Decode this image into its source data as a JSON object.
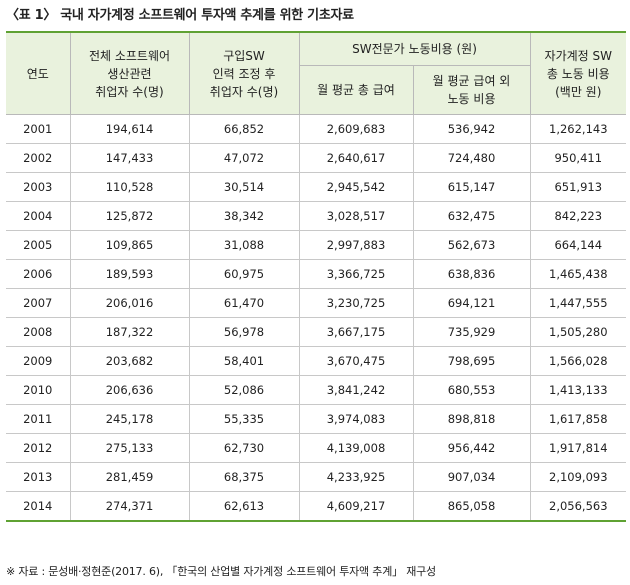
{
  "title": "〈표 1〉 국내 자가계정 소프트웨어 투자액 추계를 위한 기초자료",
  "table": {
    "headers": {
      "year": "연도",
      "employees": [
        "전체 소프트웨어",
        "생산관련",
        "취업자 수(명)"
      ],
      "purchased": [
        "구입SW",
        "인력 조정 후",
        "취업자 수(명)"
      ],
      "labor_cost": "SW전문가 노동비용 (원)",
      "monthly_wage": "월 평균 총 급여",
      "other_cost": [
        "월 평균 급여 외",
        "노동 비용"
      ],
      "total": [
        "자가계정 SW",
        "총 노동 비용",
        "(백만 원)"
      ]
    },
    "rows": [
      [
        "2001",
        "194,614",
        "66,852",
        "2,609,683",
        "536,942",
        "1,262,143"
      ],
      [
        "2002",
        "147,433",
        "47,072",
        "2,640,617",
        "724,480",
        "950,411"
      ],
      [
        "2003",
        "110,528",
        "30,514",
        "2,945,542",
        "615,147",
        "651,913"
      ],
      [
        "2004",
        "125,872",
        "38,342",
        "3,028,517",
        "632,475",
        "842,223"
      ],
      [
        "2005",
        "109,865",
        "31,088",
        "2,997,883",
        "562,673",
        "664,144"
      ],
      [
        "2006",
        "189,593",
        "60,975",
        "3,366,725",
        "638,836",
        "1,465,438"
      ],
      [
        "2007",
        "206,016",
        "61,470",
        "3,230,725",
        "694,121",
        "1,447,555"
      ],
      [
        "2008",
        "187,322",
        "56,978",
        "3,667,175",
        "735,929",
        "1,505,280"
      ],
      [
        "2009",
        "203,682",
        "58,401",
        "3,670,475",
        "798,695",
        "1,566,028"
      ],
      [
        "2010",
        "206,636",
        "52,086",
        "3,841,242",
        "680,553",
        "1,413,133"
      ],
      [
        "2011",
        "245,178",
        "55,335",
        "3,974,083",
        "898,818",
        "1,617,858"
      ],
      [
        "2012",
        "275,133",
        "62,730",
        "4,139,008",
        "956,442",
        "1,917,814"
      ],
      [
        "2013",
        "281,459",
        "68,375",
        "4,233,925",
        "907,034",
        "2,109,093"
      ],
      [
        "2014",
        "274,371",
        "62,613",
        "4,609,217",
        "865,058",
        "2,056,563"
      ]
    ]
  },
  "footnote": "※ 자료 : 문성배·정현준(2017. 6), 「한국의 산업별 자가계정 소프트웨어 투자액 추계」 재구성",
  "colors": {
    "accent": "#5fa233",
    "header_bg": "#e9f2dd"
  }
}
